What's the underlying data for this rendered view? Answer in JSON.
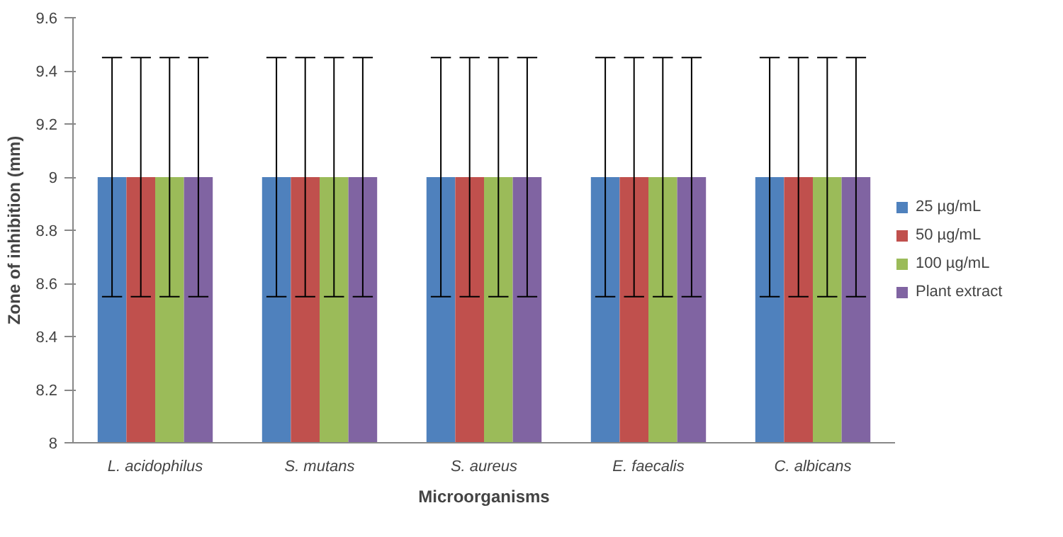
{
  "chart_data": {
    "type": "bar",
    "xlabel": "Microorganisms",
    "ylabel": "Zone of inhibition (mm)",
    "categories": [
      "L. acidophilus",
      "S. mutans",
      "S. aureus",
      "E. faecalis",
      "C. albicans"
    ],
    "series": [
      {
        "name": "25 µg/mL",
        "color": "#4f81bd",
        "values": [
          9,
          9,
          9,
          9,
          9
        ],
        "errors": [
          0.45,
          0.45,
          0.45,
          0.45,
          0.45
        ]
      },
      {
        "name": "50 µg/mL",
        "color": "#c0504d",
        "values": [
          9,
          9,
          9,
          9,
          9
        ],
        "errors": [
          0.45,
          0.45,
          0.45,
          0.45,
          0.45
        ]
      },
      {
        "name": "100 µg/mL",
        "color": "#9bbb59",
        "values": [
          9,
          9,
          9,
          9,
          9
        ],
        "errors": [
          0.45,
          0.45,
          0.45,
          0.45,
          0.45
        ]
      },
      {
        "name": "Plant extract",
        "color": "#8064a2",
        "values": [
          9,
          9,
          9,
          9,
          9
        ],
        "errors": [
          0.45,
          0.45,
          0.45,
          0.45,
          0.45
        ]
      }
    ],
    "ylim": [
      8,
      9.6
    ],
    "yticks": [
      8,
      8.2,
      8.4,
      8.6,
      8.8,
      9,
      9.2,
      9.4,
      9.6
    ],
    "grid": false,
    "legend": "right"
  }
}
